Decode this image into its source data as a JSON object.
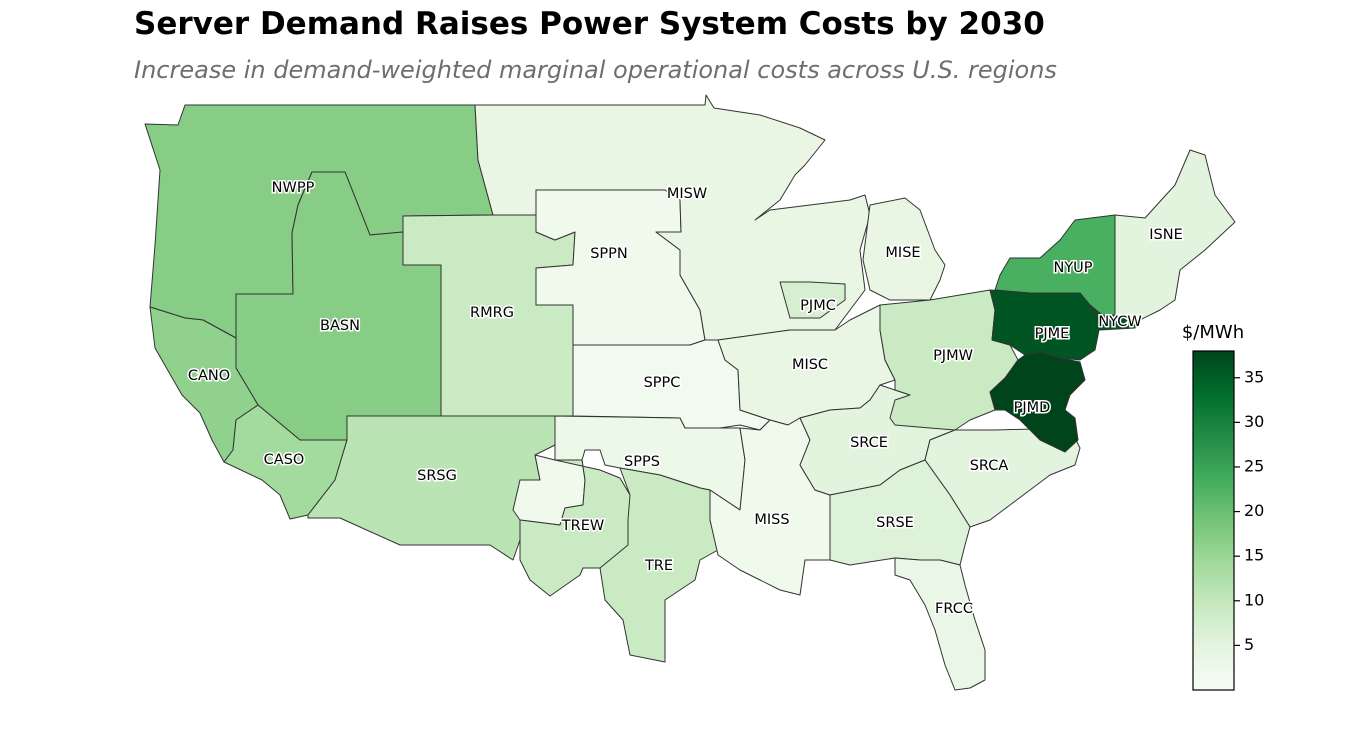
{
  "title": "Server Demand Raises Power System Costs by 2030",
  "subtitle": "Increase in demand-weighted marginal operational costs across U.S. regions",
  "colorbar": {
    "title": "$/MWh",
    "min": 0,
    "max": 38,
    "ticks": [
      {
        "value": 5,
        "label": "5"
      },
      {
        "value": 10,
        "label": "10"
      },
      {
        "value": 15,
        "label": "15"
      },
      {
        "value": 20,
        "label": "20"
      },
      {
        "value": 25,
        "label": "25"
      },
      {
        "value": 30,
        "label": "30"
      },
      {
        "value": 35,
        "label": "35"
      }
    ],
    "colors": [
      "#f7fcf5",
      "#e5f5e0",
      "#c7e9c0",
      "#a1d99b",
      "#74c476",
      "#41ab5d",
      "#238b45",
      "#006d2c",
      "#00441b"
    ]
  },
  "regions": [
    {
      "id": "NWPP",
      "label": "NWPP",
      "value": 17
    },
    {
      "id": "BASN",
      "label": "BASN",
      "value": 17
    },
    {
      "id": "CANO",
      "label": "CANO",
      "value": 16
    },
    {
      "id": "CASO",
      "label": "CASO",
      "value": 14
    },
    {
      "id": "RMRG",
      "label": "RMRG",
      "value": 9
    },
    {
      "id": "SRSG",
      "label": "SRSG",
      "value": 11
    },
    {
      "id": "SPPN",
      "label": "SPPN",
      "value": 2
    },
    {
      "id": "SPPC",
      "label": "SPPC",
      "value": 1.5
    },
    {
      "id": "SPPS",
      "label": "SPPS",
      "value": 3
    },
    {
      "id": "TREW",
      "label": "TREW",
      "value": 2
    },
    {
      "id": "TRE",
      "label": "TRE",
      "value": 9
    },
    {
      "id": "MISW",
      "label": "MISW",
      "value": 4
    },
    {
      "id": "MISE",
      "label": "MISE",
      "value": 4
    },
    {
      "id": "MISC",
      "label": "MISC",
      "value": 4
    },
    {
      "id": "MISS",
      "label": "MISS",
      "value": 2
    },
    {
      "id": "PJMC",
      "label": "PJMC",
      "value": 7
    },
    {
      "id": "PJMW",
      "label": "PJMW",
      "value": 9
    },
    {
      "id": "PJME",
      "label": "PJME",
      "value": 36
    },
    {
      "id": "PJMD",
      "label": "PJMD",
      "value": 38
    },
    {
      "id": "NYUP",
      "label": "NYUP",
      "value": 23
    },
    {
      "id": "NYCW",
      "label": "NYCW",
      "value": 36
    },
    {
      "id": "ISNE",
      "label": "ISNE",
      "value": 5
    },
    {
      "id": "SRCE",
      "label": "SRCE",
      "value": 5
    },
    {
      "id": "SRCA",
      "label": "SRCA",
      "value": 5
    },
    {
      "id": "SRSE",
      "label": "SRSE",
      "value": 6
    },
    {
      "id": "FRCC",
      "label": "FRCC",
      "value": 3.5
    }
  ]
}
